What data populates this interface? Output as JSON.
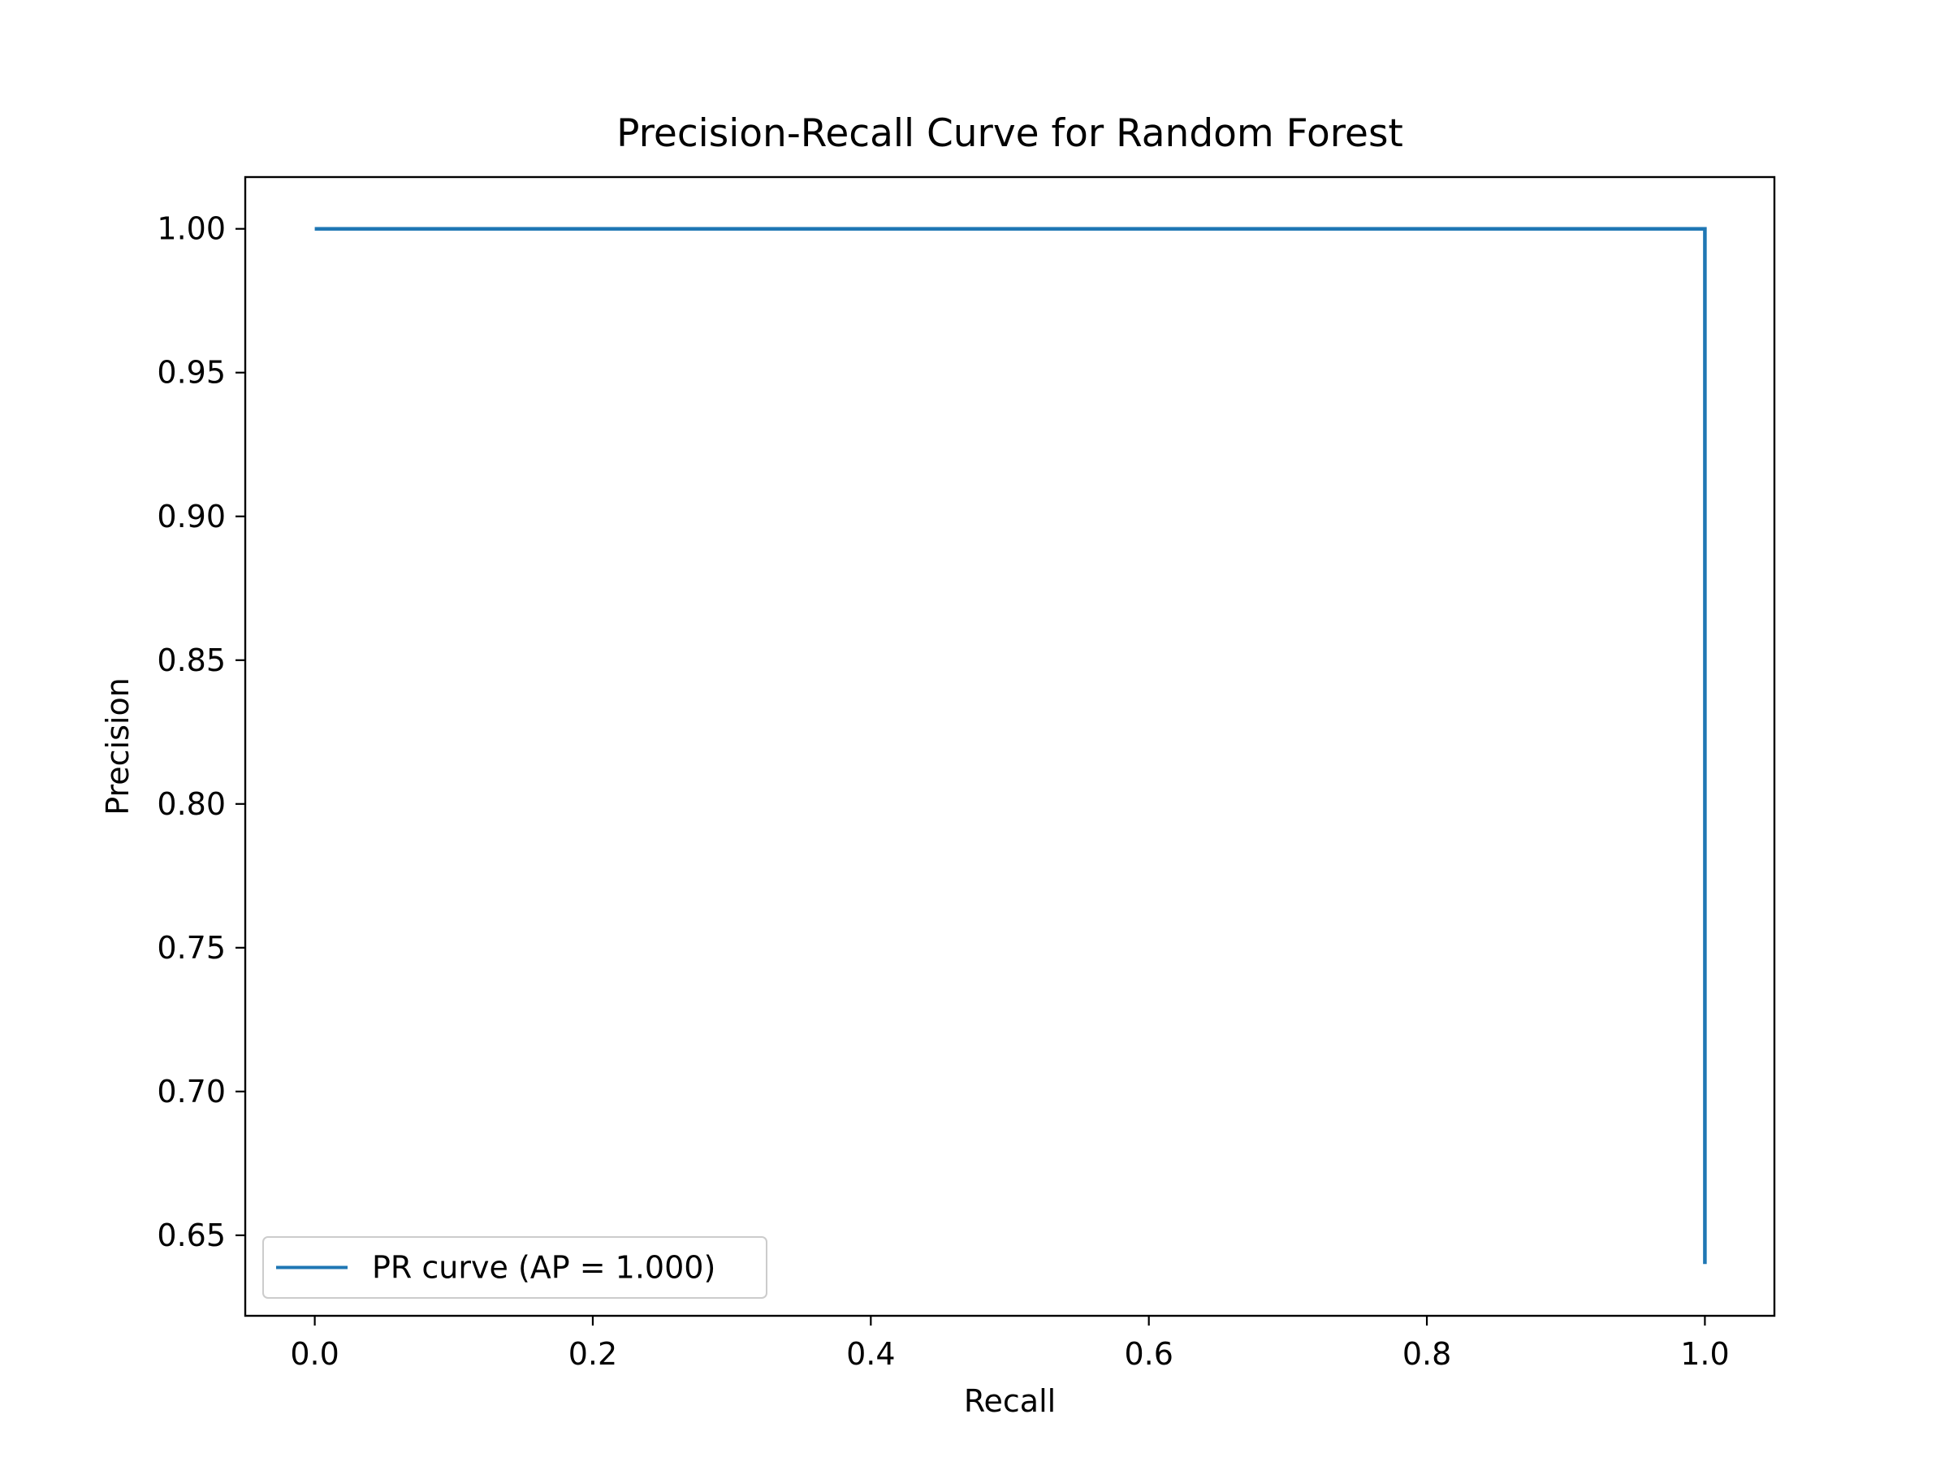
{
  "chart_data": {
    "type": "line",
    "title": "Precision-Recall Curve for Random Forest",
    "xlabel": "Recall",
    "ylabel": "Precision",
    "xlim": [
      -0.05,
      1.05
    ],
    "ylim": [
      0.622,
      1.018
    ],
    "xticks": [
      0.0,
      0.2,
      0.4,
      0.6,
      0.8,
      1.0
    ],
    "xtick_labels": [
      "0.0",
      "0.2",
      "0.4",
      "0.6",
      "0.8",
      "1.0"
    ],
    "yticks": [
      0.65,
      0.7,
      0.75,
      0.8,
      0.85,
      0.9,
      0.95,
      1.0
    ],
    "ytick_labels": [
      "0.65",
      "0.70",
      "0.75",
      "0.80",
      "0.85",
      "0.90",
      "0.95",
      "1.00"
    ],
    "grid": false,
    "legend_position": "lower-left",
    "series": [
      {
        "name": "PR curve (AP = 1.000)",
        "color": "#1f77b4",
        "x": [
          0.0,
          1.0,
          1.0
        ],
        "y": [
          1.0,
          1.0,
          0.64
        ]
      }
    ]
  }
}
